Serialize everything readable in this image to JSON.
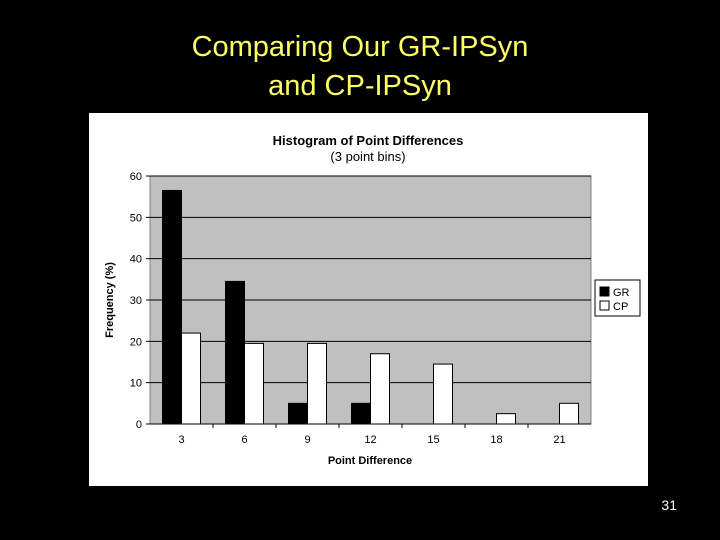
{
  "slide": {
    "title_line1": "Comparing Our GR-IPSyn",
    "title_line2": "and CP-IPSyn",
    "page_number": "31"
  },
  "colors": {
    "background": "#000000",
    "title": "#ffff66",
    "plot_area": "#c0c0c0",
    "gr_bar": "#000000",
    "cp_bar": "#ffffff"
  },
  "chart_data": {
    "type": "bar",
    "title": "Histogram of Point Differences",
    "subtitle": "(3 point bins)",
    "xlabel": "Point Difference",
    "ylabel": "Frequency (%)",
    "categories": [
      "3",
      "6",
      "9",
      "12",
      "15",
      "18",
      "21"
    ],
    "series": [
      {
        "name": "GR",
        "values": [
          56.5,
          34.5,
          5,
          5,
          0,
          0,
          0
        ]
      },
      {
        "name": "CP",
        "values": [
          22,
          19.5,
          19.5,
          17,
          14.5,
          2.5,
          5
        ]
      }
    ],
    "ylim": [
      0,
      60
    ],
    "yticks": [
      "0",
      "10",
      "20",
      "30",
      "40",
      "50",
      "60"
    ],
    "grid": true,
    "legend": "right"
  }
}
